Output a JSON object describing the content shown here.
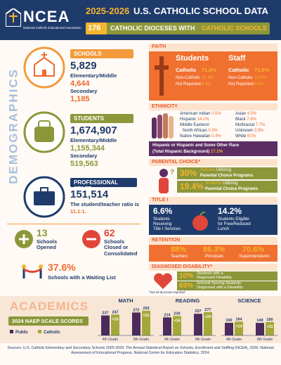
{
  "header": {
    "logo": "NCEA",
    "logo_subtitle": "National Catholic Educational Association",
    "title_year": "2025-2026",
    "title": "U.S. CATHOLIC SCHOOL DATA",
    "dioceses_count": "176",
    "dioceses_text": "CATHOLIC DIOCESES WITH",
    "dioceses_highlight": "CATHOLIC SCHOOLS"
  },
  "demographics": {
    "label": "DEMOGRAPHICS",
    "schools": {
      "title": "SCHOOLS",
      "total": "5,829",
      "elementary_label": "Elementary/Middle",
      "elementary": "4,644",
      "secondary_label": "Secondary",
      "secondary": "1,185"
    },
    "students": {
      "title": "STUDENTS",
      "total": "1,674,907",
      "elementary_label": "Elementary/Middle",
      "elementary": "1,155,344",
      "secondary_label": "Secondary",
      "secondary": "519,563"
    },
    "staff": {
      "title": "PROFESSIONAL STAFF",
      "total": "151,514",
      "ratio_text": "The student/teacher ratio is",
      "ratio": "11.1:1."
    },
    "changes": {
      "opened": "13",
      "opened_label": "Schools Opened",
      "closed": "62",
      "closed_label": "Schools Closed or Consolidated",
      "waiting": "37.6%",
      "waiting_label": "Schools with a Waiting List"
    }
  },
  "faith": {
    "title": "FAITH",
    "students": {
      "heading": "Students",
      "rows": [
        [
          "Catholic",
          "71.8%"
        ],
        [
          "Non-Catholic",
          "22.2%"
        ],
        [
          "Not Reported",
          "6.0%"
        ]
      ]
    },
    "staff": {
      "heading": "Staff",
      "rows": [
        [
          "Catholic",
          "73.6%"
        ],
        [
          "Non-Catholic",
          "16.5%"
        ],
        [
          "Not Reported",
          "9.9%"
        ]
      ]
    }
  },
  "ethnicity": {
    "title": "ETHNICITY",
    "left": [
      [
        "American Indian",
        "0.5%"
      ],
      [
        "Hispanic",
        "14.2%"
      ],
      [
        "Middle Eastern/",
        "North African",
        "0.3%"
      ],
      [
        "Native Hawaiian",
        "0.4%"
      ]
    ],
    "right": [
      [
        "Asian",
        "4.5%"
      ],
      [
        "Black",
        "7.6%"
      ],
      [
        "Multiracial",
        "7.7%"
      ],
      [
        "Unknown",
        "3.9%"
      ],
      [
        "White",
        "61%"
      ]
    ],
    "hispanic_note": "Hispanic or Hispanic and Some Other Race",
    "hispanic_total": "(Total Hispanic Background)",
    "hispanic_value": "17.1%"
  },
  "parental_choice": {
    "title": "PARENTAL CHOICE*",
    "items": [
      {
        "value": "30%",
        "who": "Schools",
        "label": "Utilizing",
        "label2": "Parental Choice Programs"
      },
      {
        "value": "19.4%",
        "who": "Students",
        "label": "Utilizing",
        "label2": "Parental Choice Programs"
      }
    ]
  },
  "title_i": {
    "title": "TITLE I",
    "items": [
      {
        "value": "6.6%",
        "label": "Students",
        "label2": "Receiving",
        "label3": "Title I Services"
      },
      {
        "value": "14.2%",
        "label": "Students Eligible",
        "label2": "for Free/Reduced",
        "label3": "Lunch"
      }
    ]
  },
  "retention": {
    "title": "RETENTION",
    "items": [
      {
        "value": "88%",
        "label": "Teachers"
      },
      {
        "value": "86.3%",
        "label": "Principals"
      },
      {
        "value": "70.6%",
        "label": "Superintendents"
      }
    ]
  },
  "disability": {
    "title": "DIAGNOSED DISABILITY*",
    "items": [
      {
        "value": "10%",
        "label": "Students with a",
        "label2": "Diagnosed Disability"
      },
      {
        "value": "69%",
        "label": "Schools Serving Students",
        "label2": "Diagnosed with a Disability"
      }
    ],
    "note": "*Not all dioceses reported"
  },
  "academics": {
    "title": "ACADEMICS",
    "subtitle": "2024 NAEP SCALE SCORES",
    "legend": [
      "Public",
      "Catholic"
    ],
    "colors": [
      "#4a2b5c",
      "#a4a83b"
    ],
    "subjects": [
      {
        "name": "MATH",
        "grades": [
          {
            "label": "4th Grade",
            "public": 237,
            "catholic": 247,
            "difference": "+10"
          },
          {
            "label": "8th Grade",
            "public": 272,
            "catholic": 293,
            "difference": "+21"
          }
        ]
      },
      {
        "name": "READING",
        "grades": [
          {
            "label": "4th Grade",
            "public": 214,
            "catholic": 230,
            "difference": "+16"
          },
          {
            "label": "8th Grade",
            "public": 257,
            "catholic": 277,
            "difference": "+20"
          }
        ]
      },
      {
        "name": "SCIENCE",
        "grades": [
          {
            "label": "4th Grade",
            "public": 150,
            "catholic": 164,
            "difference": "+14"
          },
          {
            "label": "8th Grade",
            "public": 149,
            "catholic": 160,
            "difference": "+11"
          }
        ]
      }
    ]
  },
  "footer": {
    "sources": "Sources: U.S. Catholic Elementary and Secondary Schools 2025-2026: The Annual Statistical Report on Schools, Enrollment and Staffing (NCEA), 2026; National Assessment of Educational Progress, National Center for Education Statistics, 2024."
  }
}
